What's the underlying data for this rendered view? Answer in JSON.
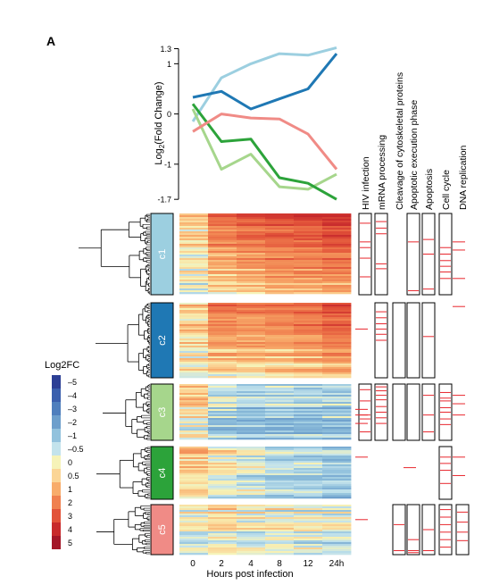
{
  "panel_label": "A",
  "chart_data": [
    {
      "type": "line",
      "ylabel_main": "Log",
      "ylabel_sub": "2",
      "ylabel_tail": "(Fold Change)",
      "y_ticks": [
        {
          "value": 1.3,
          "label": "1.3"
        },
        {
          "value": 1,
          "label": "1"
        },
        {
          "value": 0,
          "label": "0"
        },
        {
          "value": -1,
          "label": "-1"
        },
        {
          "value": -1.7,
          "label": "-1.7"
        }
      ],
      "ylim": [
        -1.75,
        1.38
      ],
      "x": [
        0,
        2,
        4,
        8,
        12,
        24
      ],
      "series": [
        {
          "key": "c1",
          "color": "#9ccfe0",
          "values": [
            -0.15,
            0.72,
            1.0,
            1.2,
            1.17,
            1.32
          ]
        },
        {
          "key": "c2",
          "color": "#1f78b4",
          "values": [
            0.33,
            0.45,
            0.1,
            0.3,
            0.5,
            1.2
          ]
        },
        {
          "key": "c3",
          "color": "#a6d68c",
          "values": [
            0.1,
            -1.1,
            -0.8,
            -1.45,
            -1.5,
            -1.2
          ]
        },
        {
          "key": "c4",
          "color": "#2ca33a",
          "values": [
            0.2,
            -0.55,
            -0.5,
            -1.27,
            -1.38,
            -1.7
          ]
        },
        {
          "key": "c5",
          "color": "#f08b86",
          "values": [
            -0.35,
            0.0,
            -0.08,
            -0.1,
            -0.4,
            -1.1
          ]
        }
      ]
    },
    {
      "type": "heatmap",
      "x_tick_labels": [
        "0",
        "2",
        "4",
        "8",
        "12",
        "24h"
      ],
      "xlabel": "Hours post infection",
      "clusters": [
        {
          "label": "c1",
          "color": "#9ccfe0",
          "trend": [
            0.2,
            1.7,
            2.1,
            2.5,
            2.6,
            3.0
          ]
        },
        {
          "label": "c2",
          "color": "#1f78b4",
          "trend": [
            0.5,
            1.7,
            1.5,
            1.7,
            2.0,
            2.6
          ]
        },
        {
          "label": "c3",
          "color": "#a6d68c",
          "trend": [
            0.3,
            -1.1,
            -1.4,
            -1.4,
            -1.5,
            -1.4
          ]
        },
        {
          "label": "c4",
          "color": "#2ca33a",
          "trend": [
            0.6,
            -0.3,
            -0.5,
            -1.0,
            -1.1,
            -1.4
          ]
        },
        {
          "label": "c5",
          "color": "#f08b86",
          "trend": [
            -0.3,
            0.1,
            -0.3,
            -0.3,
            -0.4,
            -0.7
          ]
        }
      ],
      "legend_title": "Log2FC",
      "legend": [
        {
          "label": "–5",
          "color": "#2c3f95"
        },
        {
          "label": "–4",
          "color": "#3a5fad"
        },
        {
          "label": "–3",
          "color": "#4f7fbd"
        },
        {
          "label": "–2",
          "color": "#6d9fcc"
        },
        {
          "label": "–1",
          "color": "#92c2dd"
        },
        {
          "label": "–0.5",
          "color": "#c3e3ec"
        },
        {
          "label": "0",
          "color": "#f6f3b8"
        },
        {
          "label": "0.5",
          "color": "#fbd596"
        },
        {
          "label": "1",
          "color": "#f8ac6b"
        },
        {
          "label": "2",
          "color": "#f0804f"
        },
        {
          "label": "3",
          "color": "#e25239"
        },
        {
          "label": "4",
          "color": "#c82a2c"
        },
        {
          "label": "5",
          "color": "#a41628"
        }
      ]
    }
  ],
  "annotation_columns": [
    {
      "label": "HIV infection",
      "present": [
        true,
        false,
        true,
        false,
        false
      ],
      "marks": [
        [
          0.12,
          0.35,
          0.42,
          0.55,
          0.78
        ],
        [],
        [
          0.1,
          0.3,
          0.55,
          0.62,
          0.85
        ],
        [],
        []
      ],
      "side": [
        [],
        [
          0.35
        ],
        [
          0.45,
          0.55,
          0.7
        ],
        [
          0.2
        ],
        [
          0.3
        ]
      ]
    },
    {
      "label": "mRNA processing",
      "present": [
        true,
        true,
        true,
        false,
        false
      ],
      "marks": [
        [
          0.1,
          0.18,
          0.25,
          0.62,
          0.68
        ],
        [
          0.12,
          0.2,
          0.28,
          0.35,
          0.42,
          0.5
        ],
        [
          0.05,
          0.12,
          0.2,
          0.28,
          0.4,
          0.5,
          0.6,
          0.7
        ],
        [],
        []
      ],
      "side": [
        [],
        [],
        [],
        [],
        []
      ]
    },
    {
      "label": "Cleavage of cytoskeletal proteins",
      "present": [
        false,
        true,
        true,
        false,
        true
      ],
      "marks": [
        [],
        [],
        [],
        [],
        [
          0.4,
          0.92
        ]
      ],
      "side": [
        [],
        [],
        [],
        [],
        []
      ]
    },
    {
      "label": "Apoptotic execution phase",
      "present": [
        true,
        true,
        true,
        false,
        true
      ],
      "marks": [
        [
          0.35,
          0.95
        ],
        [],
        [],
        [],
        [
          0.7,
          0.92,
          0.96
        ]
      ],
      "side": [
        [],
        [],
        [],
        [
          0.4
        ],
        []
      ]
    },
    {
      "label": "Apoptosis",
      "present": [
        true,
        true,
        true,
        false,
        true
      ],
      "marks": [
        [
          0.32,
          0.5,
          0.93
        ],
        [
          0.45
        ],
        [
          0.2,
          0.55,
          0.85
        ],
        [],
        [
          0.5,
          0.92
        ]
      ],
      "side": [
        [],
        [],
        [],
        [],
        []
      ]
    },
    {
      "label": "Cell cycle",
      "present": [
        true,
        false,
        true,
        true,
        true
      ],
      "marks": [
        [
          0.42,
          0.5,
          0.58,
          0.65,
          0.72,
          0.8
        ],
        [],
        [
          0.15,
          0.25,
          0.3,
          0.42,
          0.5,
          0.62,
          0.72
        ],
        [
          0.2,
          0.32,
          0.45,
          0.7
        ],
        [
          0.1,
          0.25,
          0.4,
          0.55,
          0.7,
          0.85
        ]
      ],
      "side": [
        [],
        [],
        [],
        [],
        []
      ]
    },
    {
      "label": "DNA replication",
      "present": [
        false,
        false,
        false,
        false,
        true
      ],
      "marks": [
        [],
        [],
        [],
        [],
        [
          0.15,
          0.35,
          0.55,
          0.72
        ]
      ],
      "side": [
        [
          0.35,
          0.45,
          0.8
        ],
        [
          0.05
        ],
        [
          0.2,
          0.35,
          0.55
        ],
        [
          0.2,
          0.55
        ],
        []
      ]
    }
  ]
}
